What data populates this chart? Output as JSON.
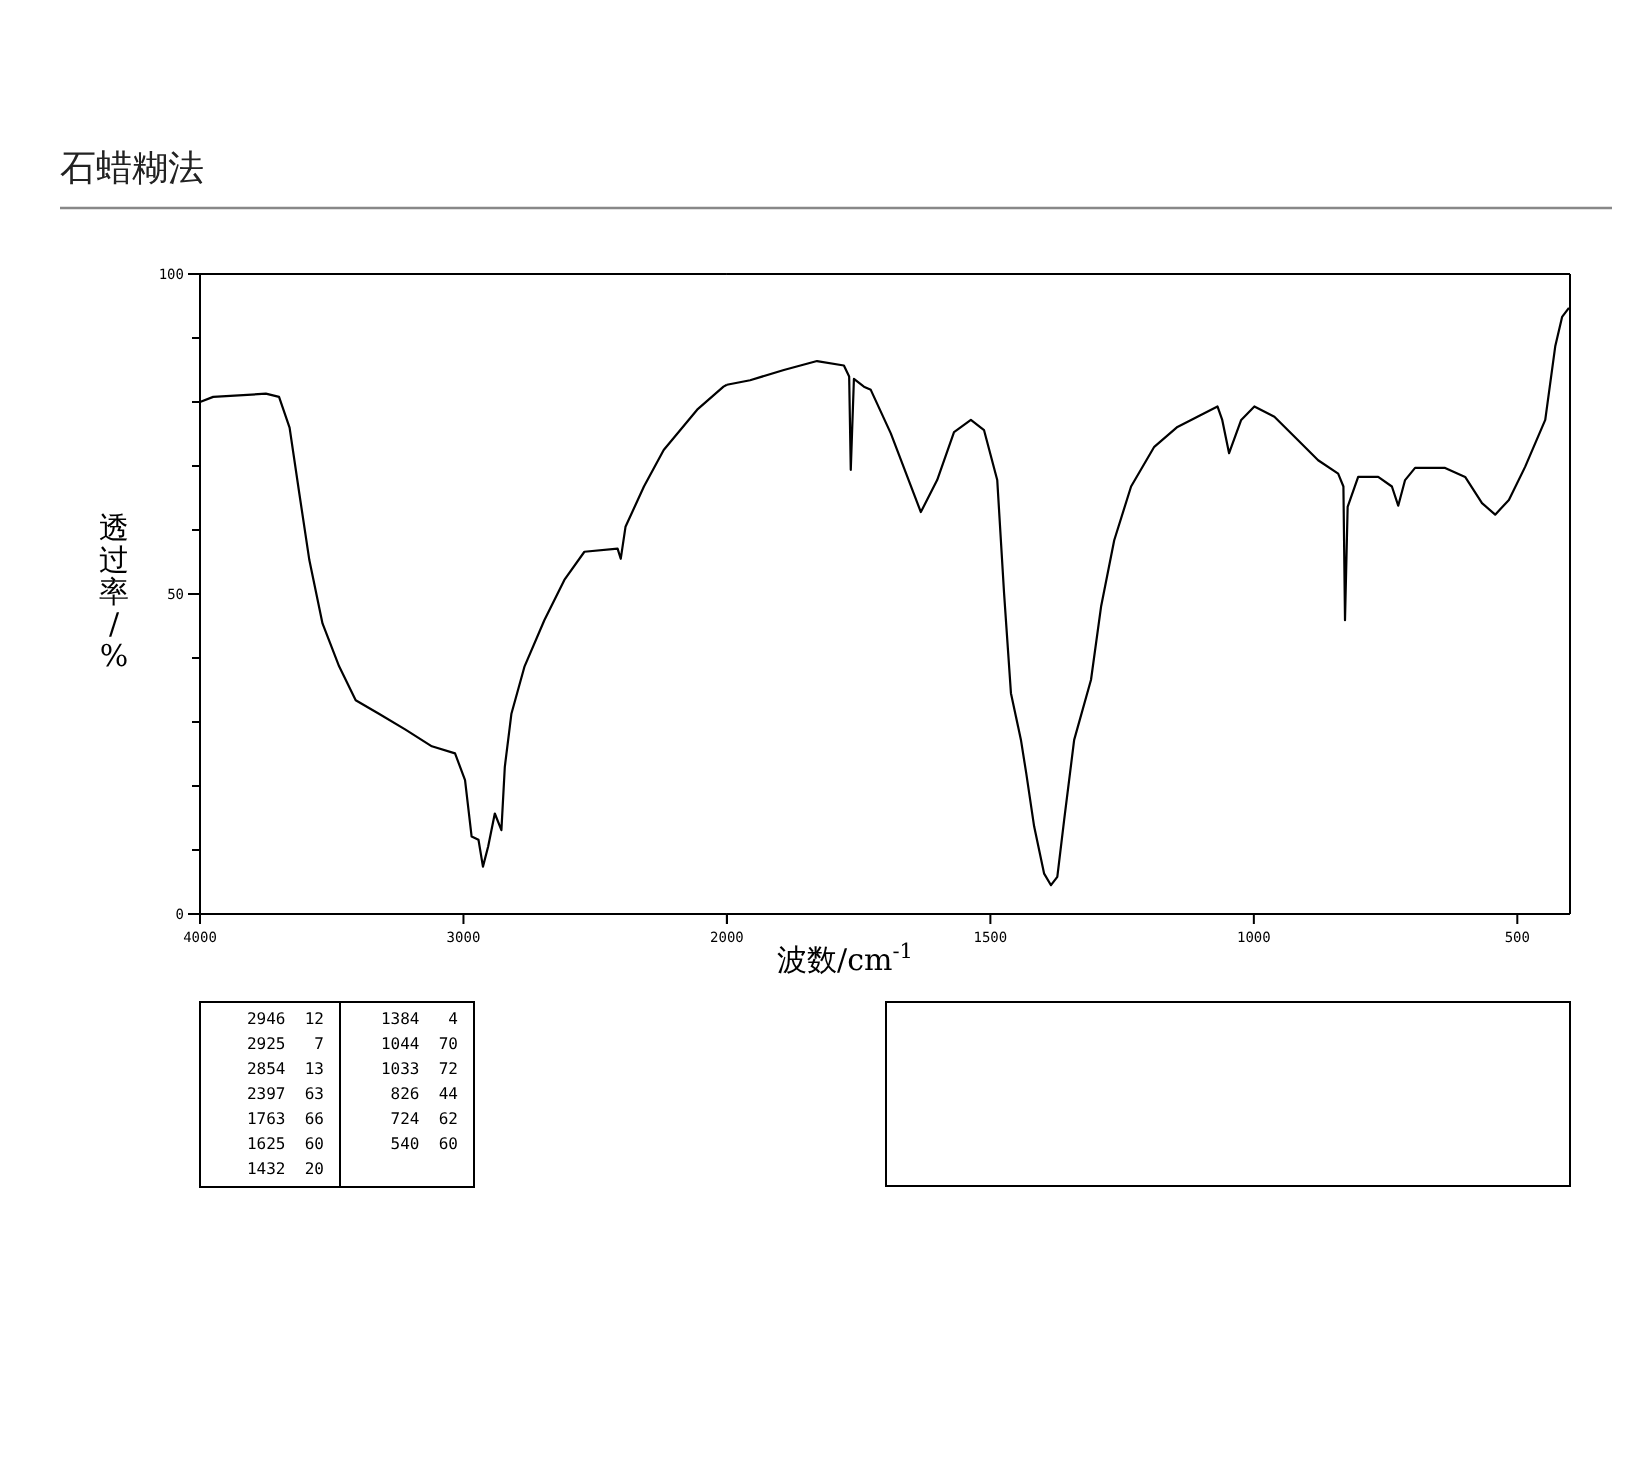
{
  "chart_data": [
    {
      "type": "line",
      "title": "石蜡糊法",
      "ylabel": "透过率/%",
      "color": "#000000",
      "xlim": [
        4000,
        2000
      ],
      "xticks": [
        4000,
        3000,
        2000
      ],
      "ylim": [
        0,
        100
      ],
      "yticks": [
        0,
        {
          "value": 10,
          "label": null
        },
        {
          "value": 20,
          "label": null
        },
        {
          "value": 30,
          "label": null
        },
        {
          "value": 40,
          "label": null
        },
        50,
        {
          "value": 60,
          "label": null
        },
        {
          "value": 70,
          "label": null
        },
        {
          "value": 80,
          "label": null
        },
        {
          "value": 90,
          "label": null
        },
        100
      ],
      "x": [
        4000,
        3950,
        3750,
        3700,
        3660,
        3623,
        3585,
        3535,
        3472,
        3409,
        3321,
        3220,
        3120,
        3032,
        2994,
        2969,
        2943,
        2926,
        2906,
        2881,
        2856,
        2843,
        2818,
        2768,
        2693,
        2617,
        2541,
        2415,
        2403,
        2385,
        2315,
        2240,
        2113,
        2013,
        2000
      ],
      "values": [
        80,
        80.8,
        81.3,
        80.8,
        76,
        65.7,
        55.3,
        45.4,
        38.7,
        33.4,
        31.3,
        28.8,
        26.2,
        25.1,
        20.9,
        12.1,
        11.6,
        7.4,
        10.6,
        15.7,
        13.1,
        23,
        31.3,
        38.7,
        45.9,
        52.2,
        56.6,
        57.1,
        55.5,
        60.5,
        66.8,
        72.5,
        78.8,
        82.4,
        82.7
      ],
      "annotations": [
        "2946  12",
        "2925   7",
        "2854  13",
        "2397  63",
        "1763  66",
        "1625  60",
        "1432  20",
        "1384   4",
        "1044  70",
        "1033  72",
        "826  44",
        "724  62",
        "540  60"
      ]
    },
    {
      "type": "line",
      "xlabel": "波数/cm$^{-1}$",
      "color": "#000000",
      "tick_labels": "x",
      "xlim": [
        2000,
        400
      ],
      "xticks": [
        {
          "value": 2000,
          "label": null
        },
        1500,
        1000,
        500
      ],
      "ylim": [
        0,
        100
      ],
      "x": [
        2000,
        1956,
        1892,
        1829,
        1778,
        1768,
        1765,
        1759,
        1740,
        1727,
        1689,
        1632,
        1601,
        1569,
        1537,
        1512,
        1487,
        1474,
        1461,
        1442,
        1432,
        1417,
        1398,
        1385,
        1373,
        1360,
        1341,
        1309,
        1290,
        1265,
        1233,
        1189,
        1145,
        1107,
        1069,
        1060,
        1047,
        1024,
        999,
        961,
        917,
        878,
        840,
        830,
        827,
        822,
        802,
        764,
        738,
        726,
        713,
        694,
        637,
        599,
        567,
        542,
        516,
        485,
        447,
        428,
        415,
        402
      ],
      "values": [
        82.7,
        83.4,
        85,
        86.4,
        85.7,
        84,
        69.4,
        83.6,
        82.4,
        81.9,
        75.1,
        62.8,
        67.8,
        75.3,
        77.2,
        75.6,
        67.8,
        50.1,
        34.5,
        27.2,
        22,
        13.7,
        6.3,
        4.5,
        5.8,
        14.7,
        27.2,
        36.6,
        48,
        58.4,
        66.8,
        73,
        76.1,
        77.7,
        79.3,
        77.2,
        72,
        77.2,
        79.3,
        77.7,
        74.1,
        70.9,
        68.8,
        66.8,
        45.9,
        63.6,
        68.3,
        68.3,
        66.8,
        63.8,
        67.8,
        69.7,
        69.7,
        68.3,
        64.2,
        62.4,
        64.7,
        69.9,
        77.2,
        88.7,
        93.3,
        94.7
      ]
    }
  ]
}
